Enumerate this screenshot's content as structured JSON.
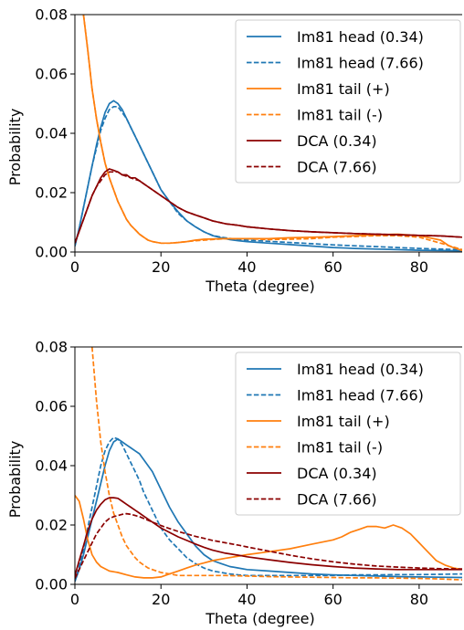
{
  "chart_data": [
    {
      "type": "line",
      "xlabel": "Theta (degree)",
      "ylabel": "Probability",
      "xlim": [
        0,
        90
      ],
      "ylim": [
        0,
        0.08
      ],
      "xticks": [
        0,
        20,
        40,
        60,
        80
      ],
      "yticks": [
        "0.00",
        "0.02",
        "0.04",
        "0.06",
        "0.08"
      ],
      "grid": false,
      "legend_position": "top-right",
      "series": [
        {
          "name": "Im81 head (0.34)",
          "color": "#1f77b4",
          "dash": "solid",
          "x": [
            0,
            1,
            2,
            3,
            4,
            5,
            6,
            7,
            8,
            9,
            10,
            11,
            12,
            13,
            14,
            15,
            16,
            17,
            18,
            19,
            20,
            22,
            24,
            26,
            28,
            30,
            32,
            34,
            36,
            38,
            40,
            45,
            50,
            55,
            60,
            65,
            70,
            75,
            80,
            85,
            90
          ],
          "y": [
            0.002,
            0.008,
            0.015,
            0.022,
            0.029,
            0.036,
            0.042,
            0.047,
            0.05,
            0.051,
            0.05,
            0.048,
            0.045,
            0.042,
            0.039,
            0.036,
            0.033,
            0.03,
            0.027,
            0.024,
            0.021,
            0.017,
            0.0135,
            0.0105,
            0.0085,
            0.0068,
            0.0055,
            0.0048,
            0.0042,
            0.0038,
            0.0035,
            0.003,
            0.0025,
            0.002,
            0.0015,
            0.0012,
            0.001,
            0.0008,
            0.0006,
            0.0005,
            0.0004
          ]
        },
        {
          "name": "Im81 head (7.66)",
          "color": "#1f77b4",
          "dash": "dashed",
          "x": [
            0,
            1,
            2,
            3,
            4,
            5,
            6,
            7,
            8,
            9,
            10,
            11,
            12,
            13,
            14,
            15,
            16,
            17,
            18,
            19,
            20,
            22,
            24,
            26,
            28,
            30,
            32,
            34,
            36,
            38,
            40,
            45,
            50,
            55,
            60,
            65,
            70,
            75,
            80,
            85,
            90
          ],
          "y": [
            0.002,
            0.008,
            0.015,
            0.022,
            0.029,
            0.035,
            0.041,
            0.045,
            0.048,
            0.049,
            0.049,
            0.047,
            0.045,
            0.042,
            0.039,
            0.036,
            0.033,
            0.03,
            0.027,
            0.024,
            0.021,
            0.017,
            0.013,
            0.0105,
            0.0085,
            0.0068,
            0.0056,
            0.005,
            0.0046,
            0.0043,
            0.004,
            0.0036,
            0.0032,
            0.0028,
            0.0024,
            0.0021,
            0.0018,
            0.0015,
            0.0012,
            0.001,
            0.0008
          ]
        },
        {
          "name": "Im81 tail (+)",
          "color": "#ff7f0e",
          "dash": "solid",
          "x": [
            2,
            3,
            4,
            5,
            6,
            7,
            8,
            9,
            10,
            11,
            12,
            13,
            14,
            15,
            16,
            17,
            18,
            20,
            22,
            24,
            26,
            28,
            30,
            35,
            40,
            45,
            50,
            55,
            60,
            65,
            70,
            75,
            80,
            85,
            87,
            90
          ],
          "y": [
            0.08,
            0.068,
            0.055,
            0.045,
            0.037,
            0.03,
            0.025,
            0.021,
            0.017,
            0.014,
            0.011,
            0.009,
            0.0075,
            0.006,
            0.005,
            0.004,
            0.0035,
            0.003,
            0.003,
            0.0032,
            0.0035,
            0.004,
            0.0043,
            0.0045,
            0.0045,
            0.0045,
            0.0048,
            0.005,
            0.0052,
            0.0055,
            0.0058,
            0.006,
            0.0055,
            0.004,
            0.002,
            0.0005
          ]
        },
        {
          "name": "Im81 tail (-)",
          "color": "#ff7f0e",
          "dash": "dashed",
          "x": [
            2,
            3,
            4,
            5,
            6,
            7,
            8,
            9,
            10,
            11,
            12,
            13,
            14,
            15,
            16,
            17,
            18,
            20,
            22,
            24,
            26,
            28,
            30,
            35,
            40,
            45,
            50,
            55,
            60,
            65,
            70,
            75,
            80,
            85,
            90
          ],
          "y": [
            0.08,
            0.068,
            0.055,
            0.045,
            0.037,
            0.03,
            0.025,
            0.021,
            0.017,
            0.014,
            0.011,
            0.009,
            0.0075,
            0.006,
            0.005,
            0.004,
            0.0035,
            0.003,
            0.003,
            0.0032,
            0.0035,
            0.0038,
            0.004,
            0.0045,
            0.0045,
            0.0042,
            0.0043,
            0.0045,
            0.005,
            0.0052,
            0.0055,
            0.0055,
            0.005,
            0.003,
            0.0008
          ]
        },
        {
          "name": "DCA (0.34)",
          "color": "#8b0000",
          "dash": "solid",
          "x": [
            0,
            1,
            2,
            3,
            4,
            5,
            6,
            7,
            8,
            9,
            10,
            11,
            12,
            13,
            14,
            15,
            16,
            18,
            20,
            22,
            24,
            26,
            28,
            30,
            32,
            35,
            38,
            40,
            45,
            50,
            55,
            60,
            65,
            70,
            75,
            80,
            85,
            90
          ],
          "y": [
            0.003,
            0.007,
            0.011,
            0.015,
            0.019,
            0.022,
            0.025,
            0.027,
            0.028,
            0.0275,
            0.027,
            0.026,
            0.026,
            0.025,
            0.025,
            0.024,
            0.023,
            0.021,
            0.019,
            0.017,
            0.015,
            0.0135,
            0.0125,
            0.0115,
            0.0105,
            0.0095,
            0.009,
            0.0085,
            0.0078,
            0.0072,
            0.0068,
            0.0065,
            0.0062,
            0.006,
            0.0058,
            0.0056,
            0.0054,
            0.005
          ]
        },
        {
          "name": "DCA (7.66)",
          "color": "#8b0000",
          "dash": "dashed",
          "x": [
            0,
            1,
            2,
            3,
            4,
            5,
            6,
            7,
            8,
            9,
            10,
            11,
            12,
            13,
            14,
            15,
            16,
            18,
            20,
            22,
            24,
            26,
            28,
            30,
            32,
            35,
            38,
            40,
            45,
            50,
            55,
            60,
            65,
            70,
            75,
            80,
            85,
            90
          ],
          "y": [
            0.003,
            0.007,
            0.011,
            0.015,
            0.019,
            0.022,
            0.024,
            0.026,
            0.027,
            0.027,
            0.027,
            0.026,
            0.0255,
            0.025,
            0.0245,
            0.024,
            0.023,
            0.021,
            0.019,
            0.017,
            0.015,
            0.0135,
            0.0125,
            0.0115,
            0.0105,
            0.0095,
            0.009,
            0.0085,
            0.0078,
            0.0072,
            0.0068,
            0.0065,
            0.0062,
            0.006,
            0.0058,
            0.0056,
            0.0054,
            0.005
          ]
        }
      ]
    },
    {
      "type": "line",
      "xlabel": "Theta (degree)",
      "ylabel": "Probability",
      "xlim": [
        0,
        90
      ],
      "ylim": [
        0,
        0.08
      ],
      "xticks": [
        0,
        20,
        40,
        60,
        80
      ],
      "yticks": [
        "0.00",
        "0.02",
        "0.04",
        "0.06",
        "0.08"
      ],
      "grid": false,
      "legend_position": "top-right",
      "series": [
        {
          "name": "Im81 head (0.34)",
          "color": "#1f77b4",
          "dash": "solid",
          "x": [
            0,
            1,
            2,
            3,
            4,
            5,
            6,
            7,
            8,
            9,
            10,
            11,
            12,
            13,
            14,
            15,
            16,
            17,
            18,
            19,
            20,
            22,
            24,
            26,
            28,
            30,
            32,
            34,
            36,
            38,
            40,
            45,
            50,
            55,
            60,
            65,
            70,
            75,
            80,
            85,
            90
          ],
          "y": [
            0.001,
            0.005,
            0.01,
            0.016,
            0.022,
            0.028,
            0.034,
            0.04,
            0.045,
            0.048,
            0.049,
            0.048,
            0.047,
            0.046,
            0.045,
            0.044,
            0.042,
            0.04,
            0.038,
            0.035,
            0.032,
            0.026,
            0.021,
            0.017,
            0.013,
            0.01,
            0.008,
            0.007,
            0.006,
            0.0055,
            0.005,
            0.0045,
            0.004,
            0.0035,
            0.0032,
            0.003,
            0.0028,
            0.0026,
            0.0025,
            0.0024,
            0.0023
          ]
        },
        {
          "name": "Im81 head (7.66)",
          "color": "#1f77b4",
          "dash": "dashed",
          "x": [
            0,
            1,
            2,
            3,
            4,
            5,
            6,
            7,
            8,
            9,
            10,
            11,
            12,
            13,
            14,
            15,
            16,
            17,
            18,
            19,
            20,
            22,
            24,
            26,
            28,
            30,
            32,
            34,
            36,
            38,
            40,
            45,
            50,
            55,
            60,
            65,
            70,
            75,
            80,
            85,
            90
          ],
          "y": [
            0.001,
            0.006,
            0.012,
            0.019,
            0.026,
            0.033,
            0.04,
            0.045,
            0.048,
            0.0495,
            0.049,
            0.047,
            0.044,
            0.041,
            0.038,
            0.035,
            0.031,
            0.028,
            0.025,
            0.022,
            0.019,
            0.015,
            0.012,
            0.009,
            0.007,
            0.0055,
            0.0045,
            0.004,
            0.0035,
            0.0032,
            0.003,
            0.003,
            0.003,
            0.003,
            0.003,
            0.0032,
            0.0032,
            0.0033,
            0.0033,
            0.0034,
            0.0035
          ]
        },
        {
          "name": "Im81 tail (+)",
          "color": "#ff7f0e",
          "dash": "solid",
          "x": [
            0,
            1,
            2,
            3,
            4,
            5,
            6,
            8,
            10,
            12,
            14,
            16,
            18,
            20,
            22,
            24,
            26,
            28,
            30,
            32,
            35,
            38,
            40,
            45,
            50,
            55,
            60,
            62,
            64,
            66,
            68,
            70,
            72,
            74,
            76,
            78,
            80,
            82,
            84,
            86,
            88,
            90
          ],
          "y": [
            0.03,
            0.028,
            0.022,
            0.015,
            0.01,
            0.0075,
            0.006,
            0.0045,
            0.004,
            0.0032,
            0.0025,
            0.0022,
            0.0022,
            0.0025,
            0.0035,
            0.0045,
            0.0055,
            0.0065,
            0.0072,
            0.008,
            0.0088,
            0.0095,
            0.01,
            0.011,
            0.012,
            0.0135,
            0.015,
            0.016,
            0.0175,
            0.0185,
            0.0195,
            0.0195,
            0.019,
            0.02,
            0.019,
            0.017,
            0.014,
            0.011,
            0.008,
            0.0065,
            0.0055,
            0.005
          ]
        },
        {
          "name": "Im81 tail (-)",
          "color": "#ff7f0e",
          "dash": "dashed",
          "x": [
            4,
            5,
            6,
            7,
            8,
            9,
            10,
            11,
            12,
            13,
            14,
            15,
            16,
            17,
            18,
            20,
            22,
            24,
            26,
            28,
            30,
            35,
            40,
            45,
            50,
            55,
            60,
            65,
            70,
            75,
            80,
            85,
            90
          ],
          "y": [
            0.08,
            0.062,
            0.048,
            0.038,
            0.03,
            0.024,
            0.02,
            0.016,
            0.013,
            0.011,
            0.009,
            0.0075,
            0.0065,
            0.0055,
            0.005,
            0.004,
            0.0035,
            0.003,
            0.003,
            0.003,
            0.003,
            0.003,
            0.0028,
            0.0026,
            0.0025,
            0.0024,
            0.0023,
            0.0022,
            0.0022,
            0.0021,
            0.002,
            0.0018,
            0.0015
          ]
        },
        {
          "name": "DCA (0.34)",
          "color": "#8b0000",
          "dash": "solid",
          "x": [
            0,
            1,
            2,
            3,
            4,
            5,
            6,
            7,
            8,
            9,
            10,
            11,
            12,
            13,
            14,
            15,
            16,
            18,
            20,
            22,
            24,
            26,
            28,
            30,
            32,
            35,
            38,
            40,
            45,
            50,
            55,
            60,
            65,
            70,
            75,
            80,
            85,
            90
          ],
          "y": [
            0.003,
            0.008,
            0.013,
            0.018,
            0.022,
            0.025,
            0.027,
            0.0285,
            0.0292,
            0.0292,
            0.029,
            0.028,
            0.027,
            0.026,
            0.025,
            0.024,
            0.023,
            0.021,
            0.019,
            0.0175,
            0.016,
            0.0148,
            0.0136,
            0.0125,
            0.0115,
            0.0105,
            0.0098,
            0.0093,
            0.0083,
            0.0074,
            0.0066,
            0.006,
            0.0055,
            0.0052,
            0.005,
            0.005,
            0.005,
            0.005
          ]
        },
        {
          "name": "DCA (7.66)",
          "color": "#8b0000",
          "dash": "dashed",
          "x": [
            0,
            1,
            2,
            3,
            4,
            5,
            6,
            7,
            8,
            9,
            10,
            11,
            12,
            13,
            14,
            15,
            16,
            18,
            20,
            22,
            24,
            26,
            28,
            30,
            32,
            35,
            38,
            40,
            45,
            50,
            55,
            60,
            65,
            70,
            75,
            80,
            85,
            90
          ],
          "y": [
            0.002,
            0.005,
            0.008,
            0.011,
            0.014,
            0.017,
            0.019,
            0.021,
            0.0222,
            0.0228,
            0.0232,
            0.0236,
            0.0238,
            0.0236,
            0.0232,
            0.0228,
            0.0222,
            0.021,
            0.0198,
            0.0188,
            0.0178,
            0.017,
            0.0162,
            0.0155,
            0.0148,
            0.014,
            0.0132,
            0.0126,
            0.0112,
            0.0098,
            0.0086,
            0.0076,
            0.0068,
            0.0062,
            0.0058,
            0.0055,
            0.0053,
            0.0052
          ]
        }
      ]
    }
  ]
}
